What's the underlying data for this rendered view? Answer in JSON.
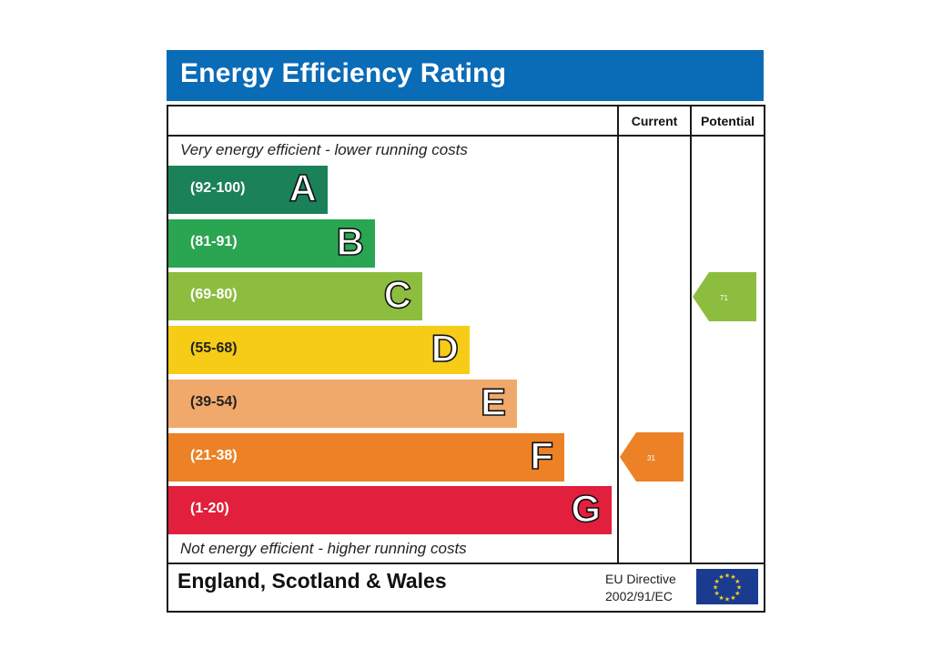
{
  "title": "Energy Efficiency Rating",
  "columns": {
    "current": "Current",
    "potential": "Potential"
  },
  "top_caption": "Very energy efficient - lower running costs",
  "bottom_caption": "Not energy efficient - higher running costs",
  "footer": {
    "region": "England, Scotland & Wales",
    "directive_line1": "EU Directive",
    "directive_line2": "2002/91/EC"
  },
  "chart_data": {
    "type": "bar",
    "bands": [
      {
        "letter": "A",
        "range": "(92-100)",
        "color": "#1a8158"
      },
      {
        "letter": "B",
        "range": "(81-91)",
        "color": "#2aa552"
      },
      {
        "letter": "C",
        "range": "(69-80)",
        "color": "#8dbd3f"
      },
      {
        "letter": "D",
        "range": "(55-68)",
        "color": "#f6cc17"
      },
      {
        "letter": "E",
        "range": "(39-54)",
        "color": "#f1a96b"
      },
      {
        "letter": "F",
        "range": "(21-38)",
        "color": "#ec8125"
      },
      {
        "letter": "G",
        "range": "(1-20)",
        "color": "#e21f3d"
      }
    ],
    "current": {
      "value": "31",
      "band": "F",
      "color": "#ec8125"
    },
    "potential": {
      "value": "71",
      "band": "C",
      "color": "#8dbd3f"
    }
  }
}
